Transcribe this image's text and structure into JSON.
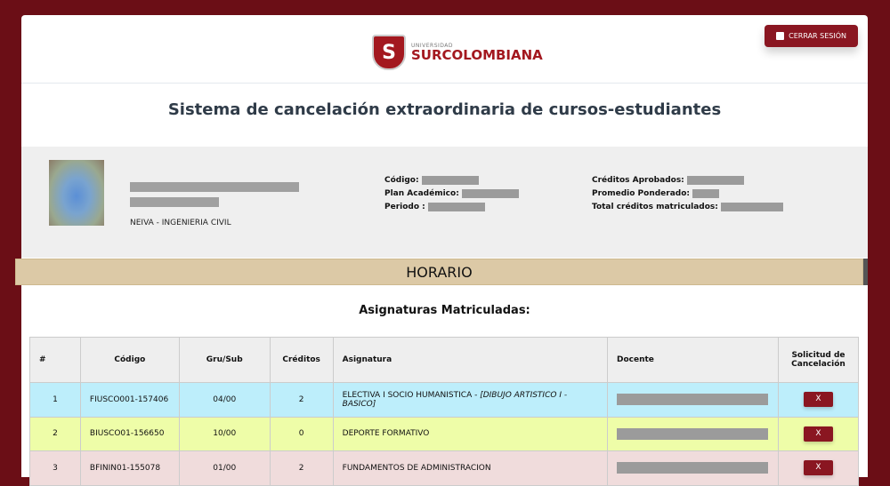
{
  "header": {
    "logo_small": "UNIVERSIDAD",
    "logo_big": "SURCOLOMBIANA",
    "logout_label": "CERRAR SESIÓN"
  },
  "title": "Sistema de cancelación extraordinaria de cursos-estudiantes",
  "student": {
    "campus_program": "NEIVA - INGENIERIA CIVIL",
    "codigo_label": "Código:",
    "plan_label": "Plan Académico:",
    "periodo_label": "Periodo :",
    "creditos_label": "Créditos Aprobados:",
    "promedio_label": "Promedio Ponderado:",
    "total_label": "Total créditos matriculados:"
  },
  "section": "HORARIO",
  "subtitle": "Asignaturas Matriculadas:",
  "table": {
    "headers": [
      "#",
      "Código",
      "Gru/Sub",
      "Créditos",
      "Asignatura",
      "Docente",
      "Solicitud de Cancelación"
    ],
    "rows": [
      {
        "n": "1",
        "codigo": "FIUSCO001-157406",
        "grupo": "04/00",
        "creditos": "2",
        "asignatura": "ELECTIVA I SOCIO HUMANISTICA - ",
        "detalle": "[DIBUJO ARTISTICO I - BASICO]",
        "color": "#bdeefb"
      },
      {
        "n": "2",
        "codigo": "BIUSCO01-156650",
        "grupo": "10/00",
        "creditos": "0",
        "asignatura": "DEPORTE FORMATIVO",
        "detalle": "",
        "color": "#eefda8"
      },
      {
        "n": "3",
        "codigo": "BFININ01-155078",
        "grupo": "01/00",
        "creditos": "2",
        "asignatura": "FUNDAMENTOS DE ADMINISTRACION",
        "detalle": "",
        "color": "#f0dcdc"
      }
    ],
    "cancel_label": "X"
  }
}
